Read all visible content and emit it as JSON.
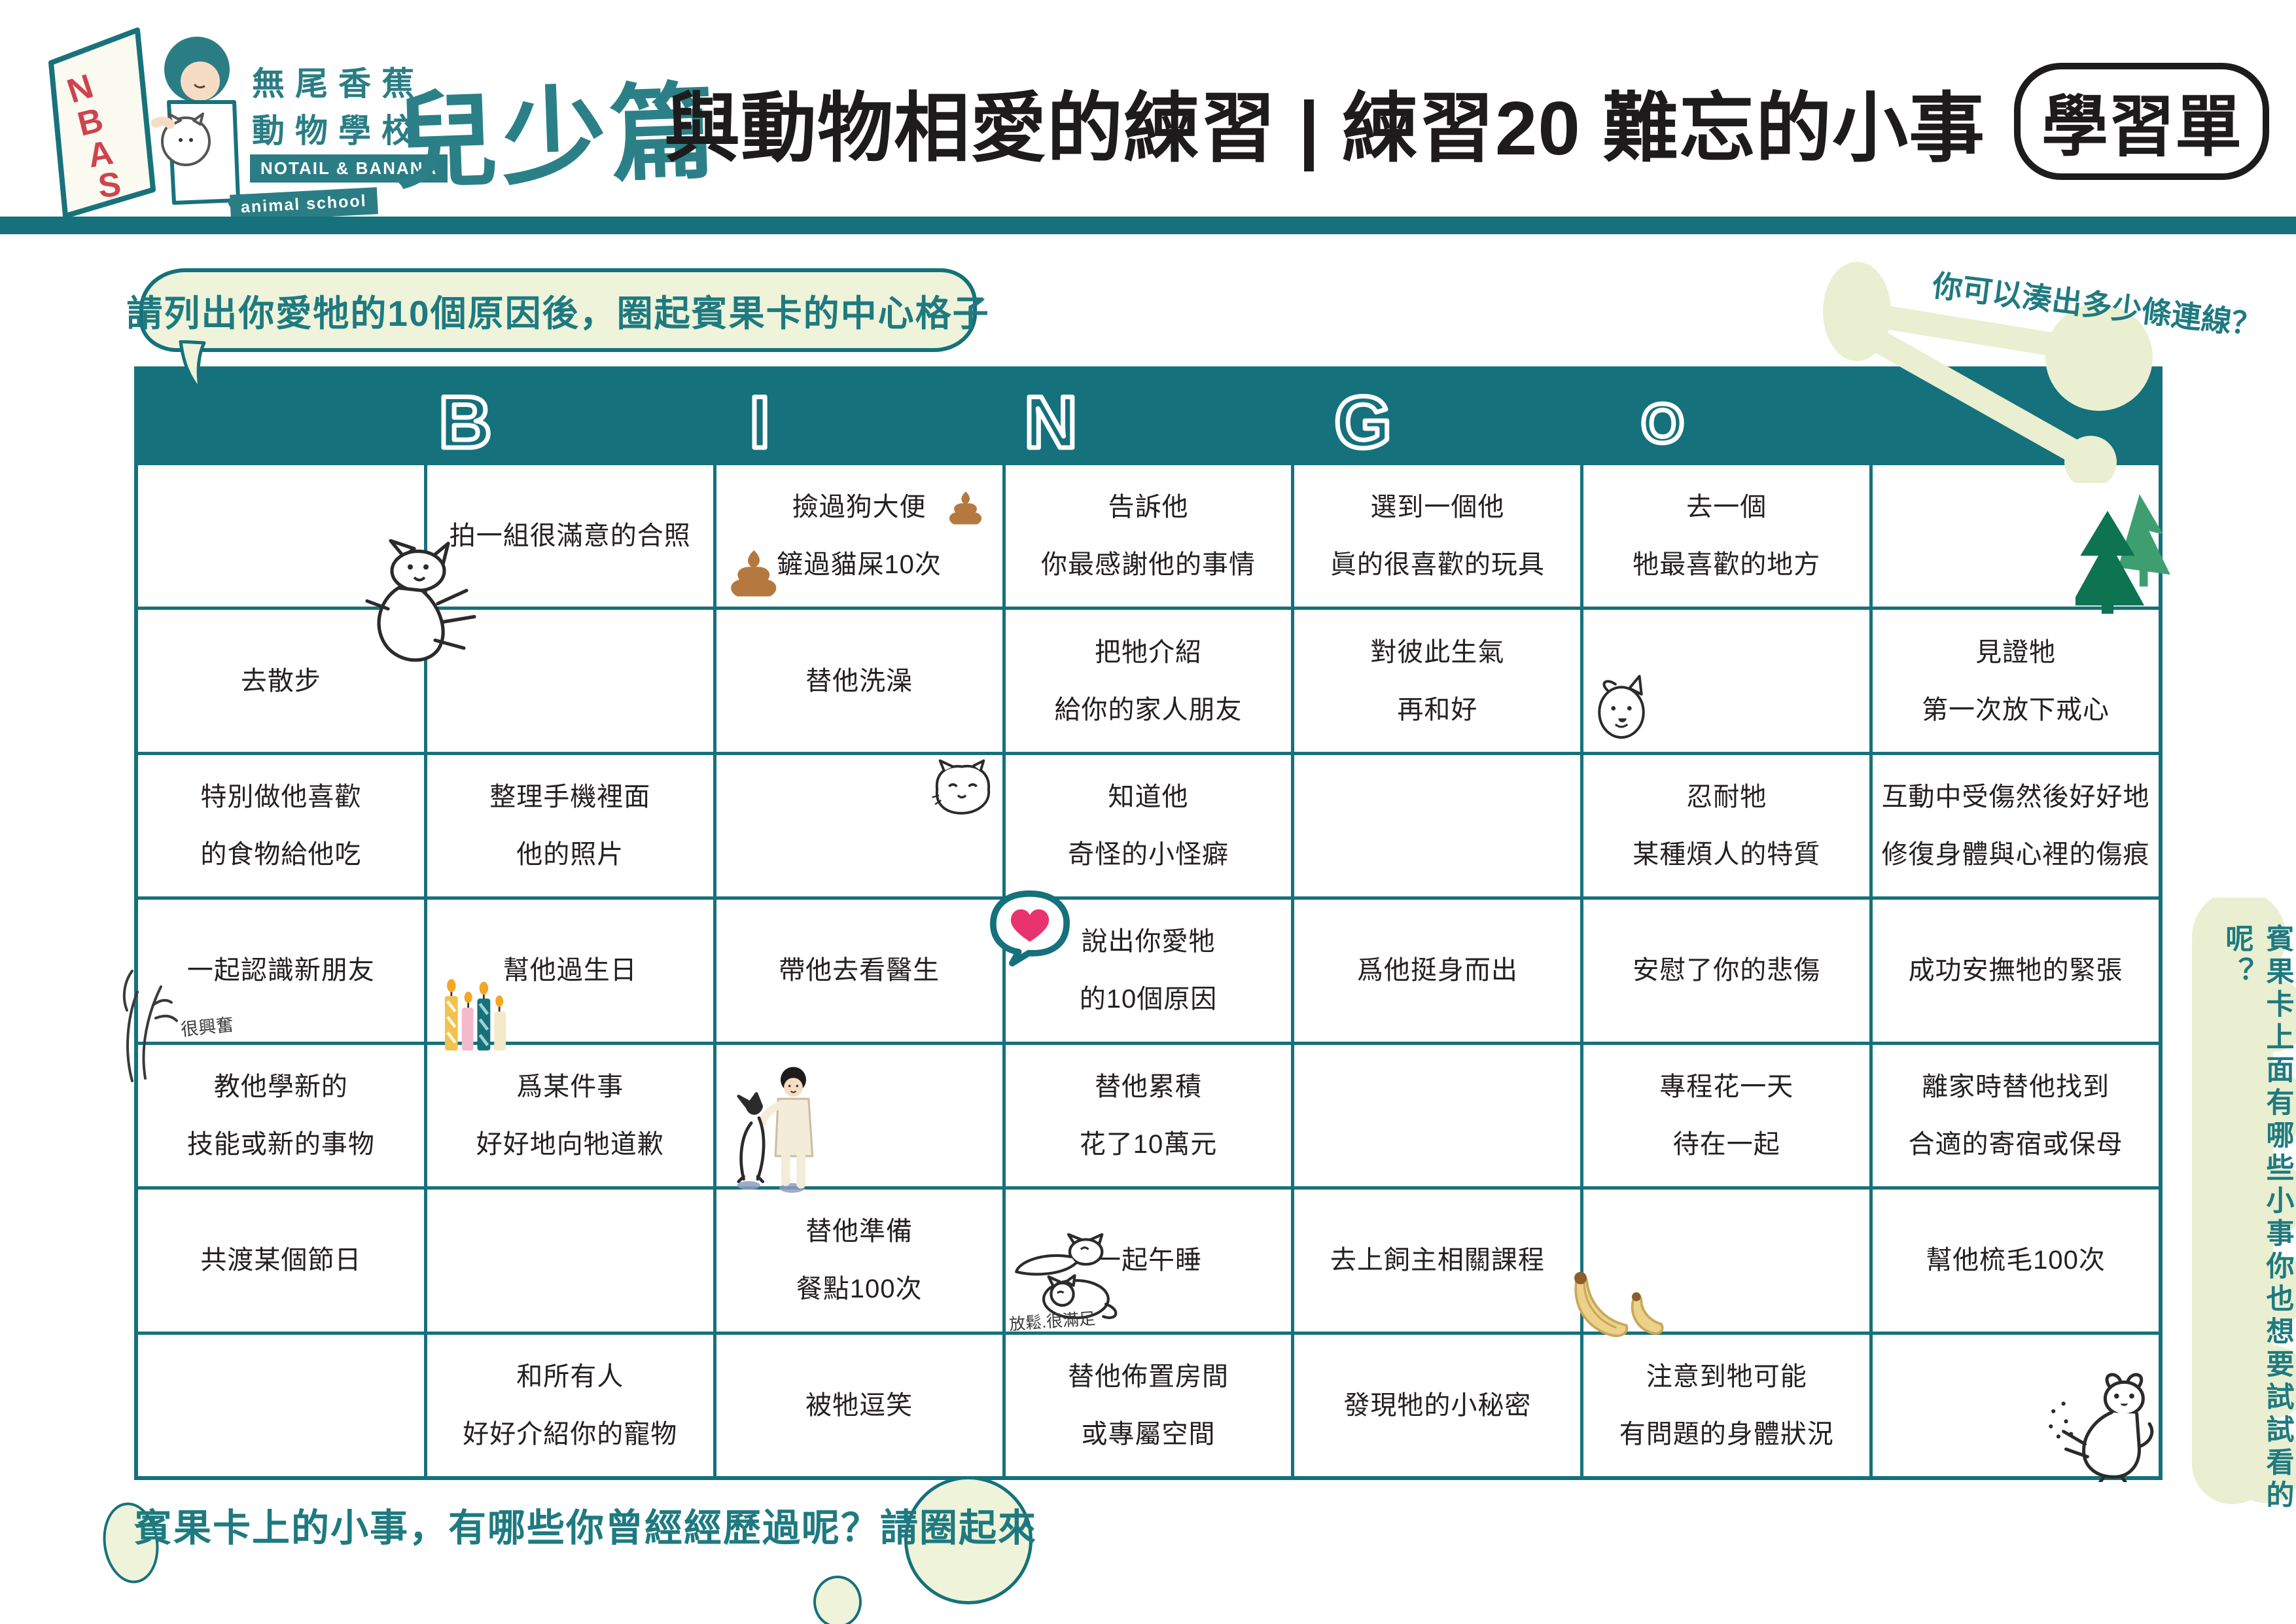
{
  "colors": {
    "teal": "#15717b",
    "teal_text": "#1e7a80",
    "ink": "#242021",
    "light_green": "#eef3d9",
    "logo_red": "#cf4350",
    "poop_brown": "#b5793f",
    "heart_pink": "#e8336e"
  },
  "header": {
    "logo_acronym": "NBAS",
    "school_name_line1": "無尾香蕉",
    "school_name_line2": "動物學校",
    "school_en_line1": "NOTAIL & BANANA",
    "school_en_line2": "animal school",
    "edition_label": "兒少篇",
    "title": "與動物相愛的練習 | 練習20 難忘的小事",
    "sheet_badge": "學習單"
  },
  "instructions": {
    "top_bubble": "請列出你愛牠的10個原因後，圈起賓果卡的中心格子",
    "top_right_hint": "你可以湊出多少條連線？",
    "bottom_note": "賓果卡上的小事，有哪些你曾經經歷過呢？請圈起來",
    "right_vertical_note": "賓果卡上面有哪些小事你也想要試試看的呢？"
  },
  "bingo": {
    "header_letters": [
      "B",
      "I",
      "N",
      "G",
      "O"
    ],
    "rows": [
      [
        "",
        "拍一組很滿意的合照",
        "撿過狗大便\n鏟過貓屎10次",
        "告訴他\n你最感謝他的事情",
        "選到一個他\n眞的很喜歡的玩具",
        "去一個\n牠最喜歡的地方",
        ""
      ],
      [
        "去散步",
        "",
        "替他洗澡",
        "把牠介紹\n給你的家人朋友",
        "對彼此生氣\n再和好",
        "",
        "見證牠\n第一次放下戒心"
      ],
      [
        "特別做他喜歡\n的食物給他吃",
        "整理手機裡面\n他的照片",
        "",
        "知道他\n奇怪的小怪癖",
        "",
        "忍耐牠\n某種煩人的特質",
        "互動中受傷然後好好地\n修復身體與心裡的傷痕"
      ],
      [
        "一起認識新朋友",
        "幫他過生日",
        "帶他去看醫生",
        "說出你愛牠\n的10個原因",
        "爲他挺身而出",
        "安慰了你的悲傷",
        "成功安撫牠的緊張"
      ],
      [
        "教他學新的\n技能或新的事物",
        "爲某件事\n好好地向牠道歉",
        "",
        "替他累積\n花了10萬元",
        "",
        "專程花一天\n待在一起",
        "離家時替他找到\n合適的寄宿或保母"
      ],
      [
        "共渡某個節日",
        "",
        "替他準備\n餐點100次",
        "一起午睡",
        "去上飼主相關課程",
        "",
        "幫他梳毛100次"
      ],
      [
        "",
        "和所有人\n好好介紹你的寵物",
        "被牠逗笑",
        "替他佈置房間\n或專屬空間",
        "發現牠的小秘密",
        "注意到牠可能\n有問題的身體狀況",
        ""
      ]
    ]
  },
  "annotations": {
    "excited": "很興奮",
    "satisfied": "放鬆.很滿足"
  },
  "icons": [
    "nbas-logo",
    "jumping-dog-doodle",
    "poop-icon",
    "pine-trees-icon",
    "dog-face-doodle",
    "cat-face-doodle",
    "heart-bubble-icon",
    "birthday-candles-icon",
    "excited-scribble-doodle",
    "person-petting-dog-doodle",
    "sleeping-cats-doodle",
    "bananas-icon",
    "scratching-dog-doodle",
    "bingo-line-decoration",
    "speech-bubble",
    "cloud-blob"
  ]
}
